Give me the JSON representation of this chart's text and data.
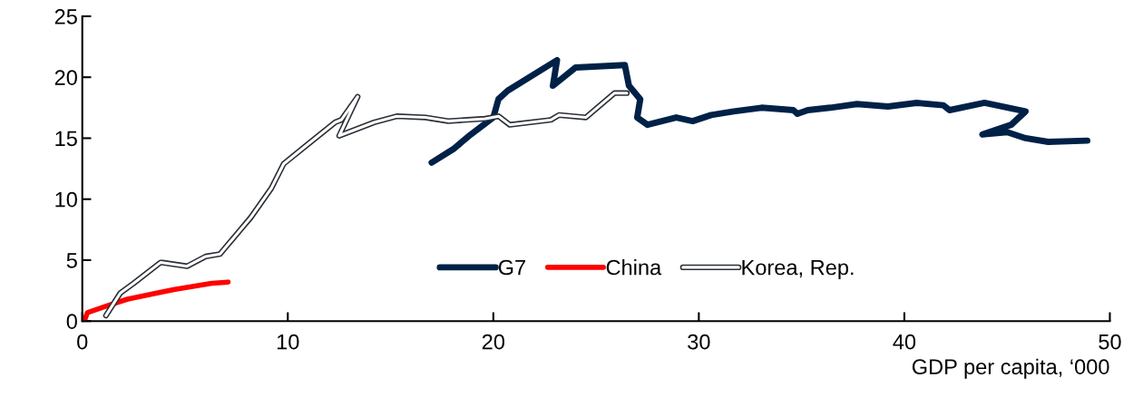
{
  "chart_data": {
    "type": "line",
    "xlabel": "GDP per capita, ‘000",
    "xlim": [
      0,
      50
    ],
    "xticks": [
      0,
      10,
      20,
      30,
      40,
      50
    ],
    "ylim": [
      0,
      25
    ],
    "yticks": [
      0,
      5,
      10,
      15,
      20,
      25
    ],
    "grid": false,
    "legend": "bottom",
    "marker": "none",
    "line_style": "solid",
    "series": [
      {
        "name": "G7",
        "color": "#002147",
        "x": [
          17.0,
          18.05,
          18.9,
          20.0,
          20.25,
          20.7,
          23.1,
          22.9,
          24.0,
          26.4,
          26.6,
          27.15,
          27.0,
          27.5,
          28.9,
          29.7,
          30.6,
          31.7,
          33.05,
          34.6,
          34.8,
          35.3,
          36.4,
          37.7,
          39.2,
          40.6,
          41.9,
          42.2,
          43.9,
          45.9,
          45.2,
          43.8,
          45.0,
          45.9,
          47.0,
          48.9
        ],
        "values": [
          13.0,
          14.1,
          15.3,
          16.7,
          18.2,
          18.9,
          21.4,
          19.3,
          20.8,
          21.0,
          19.3,
          18.2,
          16.7,
          16.1,
          16.7,
          16.4,
          16.9,
          17.2,
          17.5,
          17.3,
          17.0,
          17.3,
          17.5,
          17.8,
          17.6,
          17.9,
          17.7,
          17.3,
          17.9,
          17.2,
          16.1,
          15.3,
          15.5,
          15.0,
          14.7,
          14.8
        ]
      },
      {
        "name": "China",
        "color": "#ff0000",
        "x": [
          0.13,
          0.25,
          1.3,
          2.2,
          3.9,
          4.5,
          6.3,
          7.1
        ],
        "values": [
          0.15,
          0.7,
          1.3,
          1.8,
          2.4,
          2.6,
          3.1,
          3.2
        ]
      },
      {
        "name": "Korea, Rep.",
        "color": "#2b2f36",
        "x": [
          1.15,
          1.85,
          2.5,
          3.8,
          3.9,
          5.1,
          6.0,
          6.7,
          8.2,
          9.2,
          9.8,
          10.9,
          12.3,
          12.6,
          13.4,
          12.5,
          14.2,
          15.3,
          16.7,
          17.8,
          19.6,
          20.26,
          20.8,
          22.8,
          23.2,
          24.5,
          25.9,
          26.5
        ],
        "values": [
          0.45,
          2.3,
          3.1,
          4.8,
          4.8,
          4.5,
          5.3,
          5.5,
          8.5,
          10.9,
          12.9,
          14.4,
          16.3,
          16.5,
          18.4,
          15.2,
          16.3,
          16.8,
          16.7,
          16.4,
          16.6,
          16.8,
          16.1,
          16.5,
          16.9,
          16.7,
          18.7,
          18.7
        ]
      }
    ]
  }
}
